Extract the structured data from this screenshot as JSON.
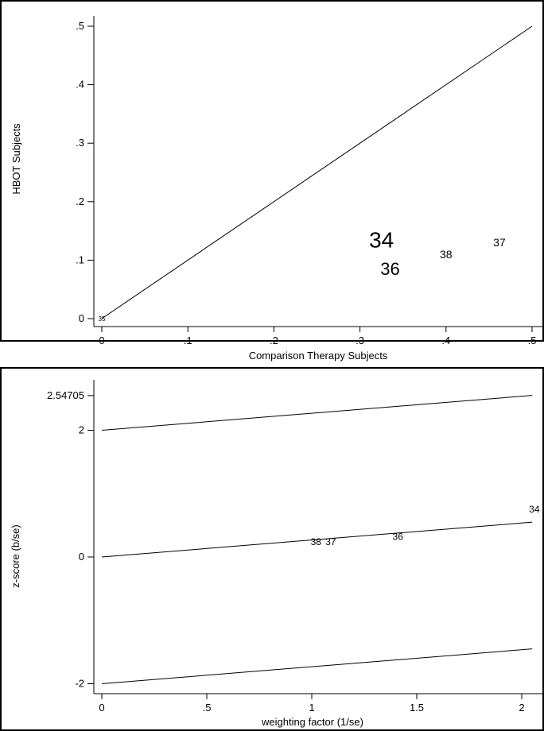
{
  "chart_data": [
    {
      "type": "scatter",
      "title": "",
      "xlabel": "Comparison Therapy Subjects",
      "ylabel": "HBOT Subjects",
      "xlim": [
        0,
        0.5
      ],
      "ylim": [
        0,
        0.5
      ],
      "x_ticks": [
        0,
        0.1,
        0.2,
        0.3,
        0.4,
        0.5
      ],
      "x_tick_labels": [
        "0",
        ".1",
        ".2",
        ".3",
        ".4",
        ".5"
      ],
      "y_ticks": [
        0,
        0.1,
        0.2,
        0.3,
        0.4,
        0.5
      ],
      "y_tick_labels": [
        "0",
        ".1",
        ".2",
        ".3",
        ".4",
        ".5"
      ],
      "grid": false,
      "reference_line": [
        [
          0,
          0
        ],
        [
          0.5,
          0.5
        ]
      ],
      "points": [
        {
          "label": "34",
          "x": 0.325,
          "y": 0.135,
          "size": "largest"
        },
        {
          "label": "36",
          "x": 0.335,
          "y": 0.085,
          "size": "large"
        },
        {
          "label": "38",
          "x": 0.4,
          "y": 0.11,
          "size": "small"
        },
        {
          "label": "37",
          "x": 0.462,
          "y": 0.13,
          "size": "small"
        },
        {
          "label": "35",
          "x": 0.0,
          "y": 0.0,
          "size": "tiny"
        }
      ]
    },
    {
      "type": "scatter",
      "title": "",
      "xlabel": "weighting factor (1/se)",
      "ylabel": "z-score (b/se)",
      "xlim": [
        0,
        2.05
      ],
      "ylim": [
        -2.1,
        2.6
      ],
      "x_ticks": [
        0,
        0.5,
        1,
        1.5,
        2
      ],
      "x_tick_labels": [
        "0",
        ".5",
        "1",
        "1.5",
        "2"
      ],
      "y_ticks": [
        -2,
        0,
        2,
        2.54705
      ],
      "y_tick_labels": [
        "-2",
        "0",
        "2",
        "2.54705"
      ],
      "grid": false,
      "lines": [
        {
          "x": [
            0,
            2.05
          ],
          "y": [
            2.0,
            2.55
          ]
        },
        {
          "x": [
            0,
            2.05
          ],
          "y": [
            0.0,
            0.55
          ]
        },
        {
          "x": [
            0,
            2.05
          ],
          "y": [
            -2.0,
            -1.45
          ]
        }
      ],
      "points": [
        {
          "label": "38",
          "x": 1.02,
          "y": 0.24
        },
        {
          "label": "37",
          "x": 1.09,
          "y": 0.24
        },
        {
          "label": "36",
          "x": 1.41,
          "y": 0.32
        },
        {
          "label": "34",
          "x": 2.06,
          "y": 0.75
        }
      ]
    }
  ]
}
